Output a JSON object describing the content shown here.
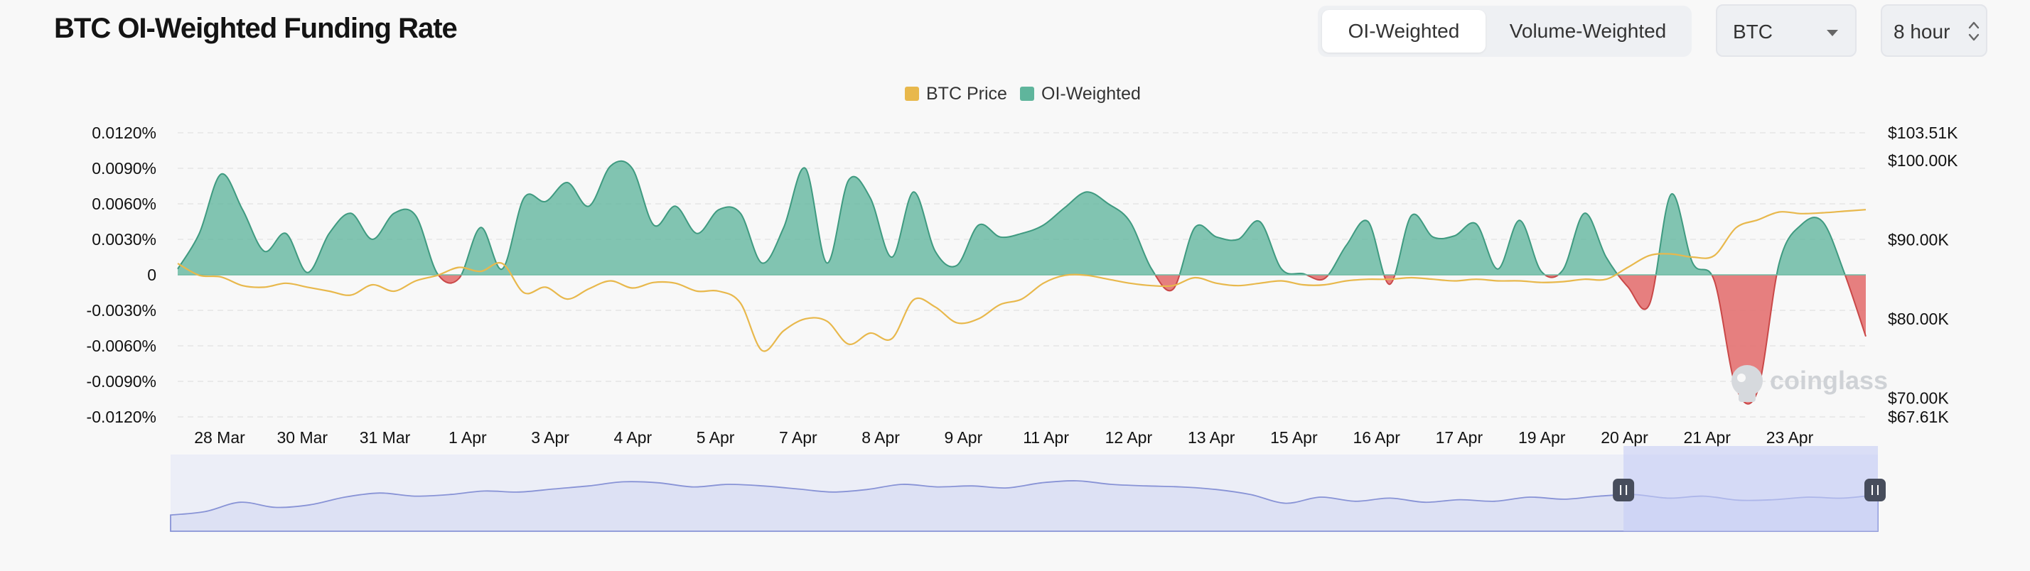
{
  "page": {
    "title": "BTC OI-Weighted Funding Rate"
  },
  "controls": {
    "tabs": [
      {
        "label": "OI-Weighted",
        "active": true
      },
      {
        "label": "Volume-Weighted",
        "active": false
      }
    ],
    "coin_select": {
      "value": "BTC"
    },
    "interval_select": {
      "value": "8 hour"
    }
  },
  "watermark": "coinglass",
  "colors": {
    "price": "#e8b84c",
    "positive": "#5fb59c",
    "negative": "#e36a6a",
    "navigator": "#8893d6"
  },
  "chart_data": {
    "type": "area",
    "legend": [
      {
        "name": "BTC Price",
        "color": "#e8b84c"
      },
      {
        "name": "OI-Weighted",
        "color": "#5fb59c"
      }
    ],
    "x_labels": [
      "28 Mar",
      "30 Mar",
      "31 Mar",
      "1 Apr",
      "3 Apr",
      "4 Apr",
      "5 Apr",
      "7 Apr",
      "8 Apr",
      "9 Apr",
      "11 Apr",
      "12 Apr",
      "13 Apr",
      "15 Apr",
      "16 Apr",
      "17 Apr",
      "19 Apr",
      "20 Apr",
      "21 Apr",
      "23 Apr"
    ],
    "y_left": {
      "ticks": [
        "0.0120%",
        "0.0090%",
        "0.0060%",
        "0.0030%",
        "0",
        "-0.0030%",
        "-0.0060%",
        "-0.0090%",
        "-0.0120%"
      ],
      "tick_values": [
        0.012,
        0.009,
        0.006,
        0.003,
        0,
        -0.003,
        -0.006,
        -0.009,
        -0.012
      ],
      "range": [
        -0.012,
        0.012
      ]
    },
    "y_right": {
      "ticks": [
        "$103.51K",
        "$100.00K",
        "$90.00K",
        "$80.00K",
        "$70.00K",
        "$67.61K"
      ],
      "tick_values": [
        103.51,
        100,
        90,
        80,
        70,
        67.61
      ],
      "range": [
        67.61,
        103.51
      ]
    },
    "series": [
      {
        "name": "OI-Weighted",
        "axis": "left",
        "unit": "%",
        "values": [
          0.0005,
          0.0035,
          0.0085,
          0.0055,
          0.002,
          0.0035,
          0.0002,
          0.0035,
          0.0052,
          0.003,
          0.0052,
          0.005,
          0.0001,
          -0.0003,
          0.004,
          0.0005,
          0.0065,
          0.0062,
          0.0078,
          0.0058,
          0.0092,
          0.009,
          0.0042,
          0.0058,
          0.0035,
          0.0055,
          0.0052,
          0.001,
          0.004,
          0.009,
          0.001,
          0.008,
          0.0065,
          0.0015,
          0.007,
          0.002,
          0.0008,
          0.0042,
          0.0032,
          0.0035,
          0.0042,
          0.0057,
          0.007,
          0.006,
          0.0045,
          0.0005,
          -0.0012,
          0.004,
          0.0032,
          0.003,
          0.0045,
          0.0005,
          0.0001,
          -0.0003,
          0.0025,
          0.0045,
          -0.0008,
          0.005,
          0.0032,
          0.0033,
          0.0043,
          0.0005,
          0.0046,
          0.0003,
          0.0004,
          0.0052,
          0.0015,
          -0.001,
          -0.0025,
          0.0068,
          0.001,
          -0.0005,
          -0.0095,
          -0.0098,
          0.001,
          0.0042,
          0.0045,
          0.0002,
          -0.0052
        ]
      },
      {
        "name": "BTC Price",
        "axis": "right",
        "unit": "K USD",
        "values": [
          87.0,
          85.5,
          85.3,
          84.2,
          84.0,
          84.5,
          84.0,
          83.5,
          83.0,
          84.3,
          83.5,
          84.8,
          85.5,
          86.5,
          86.0,
          87.0,
          83.3,
          84.0,
          82.5,
          83.8,
          84.8,
          83.9,
          84.6,
          84.5,
          83.5,
          83.5,
          82.0,
          76.0,
          78.5,
          80.0,
          79.7,
          76.8,
          78.2,
          77.5,
          82.4,
          81.5,
          79.5,
          80.0,
          81.8,
          82.5,
          84.5,
          85.5,
          85.5,
          85.0,
          84.5,
          84.2,
          84.2,
          85.2,
          84.5,
          84.2,
          84.5,
          84.8,
          84.3,
          84.3,
          84.8,
          85.0,
          85.0,
          85.2,
          85.0,
          84.8,
          85.0,
          84.8,
          84.8,
          84.6,
          84.7,
          85.0,
          85.0,
          86.5,
          88.0,
          88.2,
          87.8,
          88.0,
          91.5,
          92.5,
          93.5,
          93.3,
          93.4,
          93.6,
          93.8
        ]
      }
    ]
  },
  "navigator": {
    "values": [
      0.15,
      0.22,
      0.4,
      0.3,
      0.35,
      0.5,
      0.58,
      0.52,
      0.55,
      0.62,
      0.6,
      0.66,
      0.72,
      0.8,
      0.78,
      0.7,
      0.75,
      0.72,
      0.66,
      0.6,
      0.65,
      0.75,
      0.7,
      0.72,
      0.68,
      0.78,
      0.82,
      0.75,
      0.72,
      0.7,
      0.65,
      0.55,
      0.38,
      0.5,
      0.42,
      0.48,
      0.4,
      0.45,
      0.42,
      0.5,
      0.46,
      0.52,
      0.55,
      0.48,
      0.52,
      0.44,
      0.45,
      0.5,
      0.48,
      0.55
    ],
    "selection": [
      0.851,
      1.0
    ]
  }
}
